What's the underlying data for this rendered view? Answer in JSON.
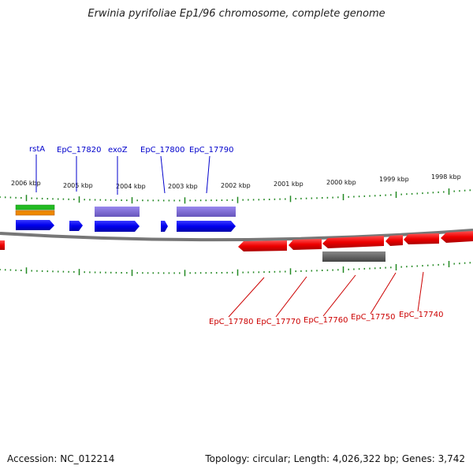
{
  "title": "Erwinia pyrifoliae Ep1/96 chromosome, complete genome",
  "footer": {
    "accession": "Accession: NC_012214",
    "summary": "Topology: circular; Length: 4,026,322 bp; Genes: 3,742"
  },
  "scale_labels": [
    "2006 kbp",
    "2005 kbp",
    "2004 kbp",
    "2003 kbp",
    "2002 kbp",
    "2001 kbp",
    "2000 kbp",
    "1999 kbp",
    "1998 kbp"
  ],
  "top_gene_labels": [
    "rstA",
    "EpC_17820",
    "exoZ",
    "EpC_17800",
    "EpC_17790"
  ],
  "bottom_gene_labels": [
    "EpC_17780",
    "EpC_17770",
    "EpC_17760",
    "EpC_17750",
    "EpC_17740"
  ],
  "colors": {
    "forward_gene": "#0000ee",
    "reverse_gene": "#ee0000",
    "rna_feature": "#22bb22",
    "orange_feature": "#ee8800",
    "cds_feature": "#7766cc",
    "gray_feature": "#666666",
    "tick": "#228822",
    "backbone": "#888888"
  }
}
